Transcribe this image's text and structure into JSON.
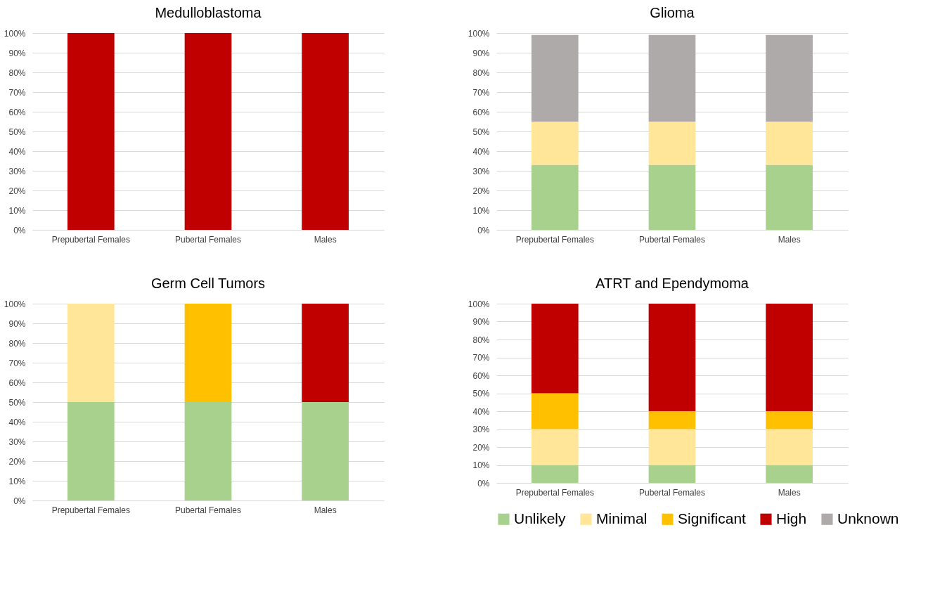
{
  "chart_data": [
    {
      "type": "bar",
      "title": "Medulloblastoma",
      "categories": [
        "Prepubertal Females",
        "Pubertal Females",
        "Males"
      ],
      "stacked": true,
      "grid": "y",
      "legend": false,
      "ylim": [
        0,
        100
      ],
      "yticks": [
        {
          "value": 0,
          "label": "0%"
        },
        {
          "value": 10,
          "label": "10%"
        },
        {
          "value": 20,
          "label": "20%"
        },
        {
          "value": 30,
          "label": "30%"
        },
        {
          "value": 40,
          "label": "40%"
        },
        {
          "value": 50,
          "label": "50%"
        },
        {
          "value": 60,
          "label": "60%"
        },
        {
          "value": 70,
          "label": "70%"
        },
        {
          "value": 80,
          "label": "80%"
        },
        {
          "value": 90,
          "label": "90%"
        },
        {
          "value": 100,
          "label": "100%"
        }
      ],
      "series": [
        {
          "color": "#c00000",
          "values": [
            100,
            100,
            100
          ]
        }
      ]
    },
    {
      "type": "bar",
      "title": "Glioma",
      "categories": [
        "Prepubertal Females",
        "Pubertal Females",
        "Males"
      ],
      "stacked": true,
      "grid": "y",
      "legend": false,
      "ylim": [
        0,
        100
      ],
      "yticks": [
        {
          "value": 0,
          "label": "0%"
        },
        {
          "value": 10,
          "label": "10%"
        },
        {
          "value": 20,
          "label": "20%"
        },
        {
          "value": 30,
          "label": "30%"
        },
        {
          "value": 40,
          "label": "40%"
        },
        {
          "value": 50,
          "label": "50%"
        },
        {
          "value": 60,
          "label": "60%"
        },
        {
          "value": 70,
          "label": "70%"
        },
        {
          "value": 80,
          "label": "80%"
        },
        {
          "value": 90,
          "label": "90%"
        },
        {
          "value": 100,
          "label": "100%"
        }
      ],
      "series": [
        {
          "color": "#a9d18e",
          "values": [
            33,
            33,
            33
          ]
        },
        {
          "color": "#ffe699",
          "values": [
            22,
            22,
            22
          ]
        },
        {
          "color": "#aeaaaa",
          "values": [
            44,
            44,
            44
          ]
        }
      ]
    },
    {
      "type": "bar",
      "title": "Germ Cell Tumors",
      "categories": [
        "Prepubertal Females",
        "Pubertal Females",
        "Males"
      ],
      "stacked": true,
      "grid": "y",
      "legend": false,
      "ylim": [
        0,
        100
      ],
      "yticks": [
        {
          "value": 0,
          "label": "0%"
        },
        {
          "value": 10,
          "label": "10%"
        },
        {
          "value": 20,
          "label": "20%"
        },
        {
          "value": 30,
          "label": "30%"
        },
        {
          "value": 40,
          "label": "40%"
        },
        {
          "value": 50,
          "label": "50%"
        },
        {
          "value": 60,
          "label": "60%"
        },
        {
          "value": 70,
          "label": "70%"
        },
        {
          "value": 80,
          "label": "80%"
        },
        {
          "value": 90,
          "label": "90%"
        },
        {
          "value": 100,
          "label": "100%"
        }
      ],
      "series": [
        {
          "color": "#a9d18e",
          "values": [
            50,
            50,
            50
          ]
        },
        {
          "color": "#ffe699",
          "values": [
            50,
            null,
            null
          ]
        },
        {
          "color": "#ffc000",
          "values": [
            null,
            50,
            null
          ]
        },
        {
          "color": "#c00000",
          "values": [
            null,
            null,
            50
          ]
        }
      ]
    },
    {
      "type": "bar",
      "title": "ATRT and Ependymoma",
      "categories": [
        "Prepubertal Females",
        "Pubertal Females",
        "Males"
      ],
      "stacked": true,
      "grid": "y",
      "legend": "bottom",
      "ylim": [
        0,
        100
      ],
      "yticks": [
        {
          "value": 0,
          "label": "0%"
        },
        {
          "value": 10,
          "label": "10%"
        },
        {
          "value": 20,
          "label": "20%"
        },
        {
          "value": 30,
          "label": "30%"
        },
        {
          "value": 40,
          "label": "40%"
        },
        {
          "value": 50,
          "label": "50%"
        },
        {
          "value": 60,
          "label": "60%"
        },
        {
          "value": 70,
          "label": "70%"
        },
        {
          "value": 80,
          "label": "80%"
        },
        {
          "value": 90,
          "label": "90%"
        },
        {
          "value": 100,
          "label": "100%"
        }
      ],
      "series": [
        {
          "name": "Unlikely",
          "color": "#a9d18e",
          "values": [
            10,
            10,
            10
          ]
        },
        {
          "name": "Minimal",
          "color": "#ffe699",
          "values": [
            20,
            20,
            20
          ]
        },
        {
          "name": "Significant",
          "color": "#ffc000",
          "values": [
            20,
            10,
            10
          ]
        },
        {
          "name": "High",
          "color": "#c00000",
          "values": [
            50,
            60,
            60
          ]
        },
        {
          "name": "Unknown",
          "color": "#aeaaaa",
          "values": [
            null,
            null,
            null
          ]
        }
      ]
    }
  ]
}
